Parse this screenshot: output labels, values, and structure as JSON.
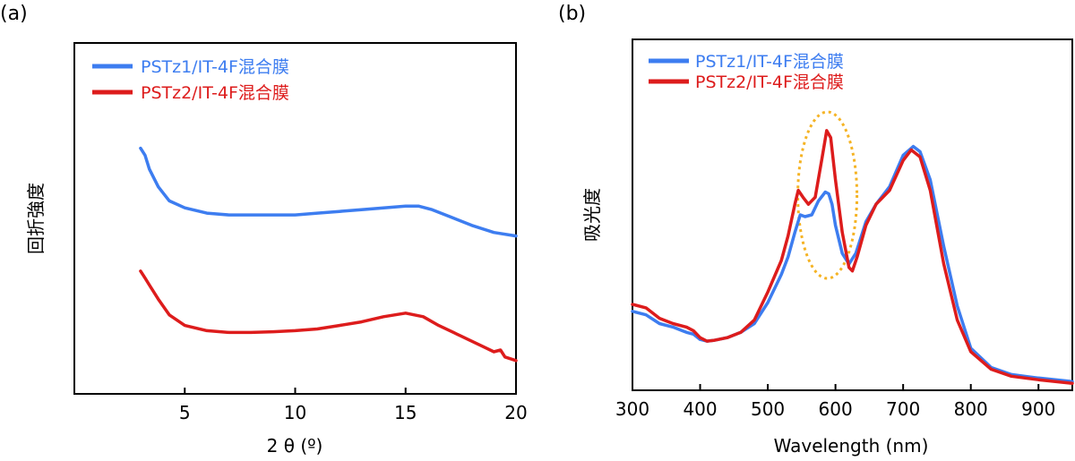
{
  "chart_data": [
    {
      "panel": "(a)",
      "type": "line",
      "xlabel": "2 θ (º)",
      "ylabel": "回折強度",
      "xlim": [
        0,
        20
      ],
      "ylim": [
        0,
        1
      ],
      "xticks": [
        5,
        10,
        15,
        20
      ],
      "xtick_labels": [
        "5",
        "10",
        "15",
        "20"
      ],
      "show_y_ticks": false,
      "legend": "top-left",
      "series": [
        {
          "name": "PSTz1/IT-4F混合膜",
          "color": "#3d7df0",
          "x": [
            3.0,
            3.2,
            3.4,
            3.8,
            4.3,
            5.0,
            6.0,
            7.0,
            8.0,
            9.0,
            10.0,
            11.0,
            12.0,
            13.0,
            14.0,
            15.0,
            15.6,
            16.2,
            17.0,
            18.0,
            19.0,
            20.0
          ],
          "y": [
            0.7,
            0.68,
            0.64,
            0.59,
            0.55,
            0.53,
            0.515,
            0.51,
            0.51,
            0.51,
            0.51,
            0.515,
            0.52,
            0.525,
            0.53,
            0.535,
            0.535,
            0.525,
            0.505,
            0.48,
            0.46,
            0.45
          ]
        },
        {
          "name": "PSTz2/IT-4F混合膜",
          "color": "#dd1c1c",
          "x": [
            3.0,
            3.2,
            3.4,
            3.8,
            4.3,
            5.0,
            6.0,
            7.0,
            8.0,
            9.0,
            10.0,
            11.0,
            12.0,
            13.0,
            14.0,
            15.0,
            15.8,
            16.5,
            17.5,
            18.5,
            19.0,
            19.3,
            19.5,
            20.0
          ],
          "y": [
            0.35,
            0.33,
            0.31,
            0.27,
            0.225,
            0.195,
            0.18,
            0.175,
            0.175,
            0.177,
            0.18,
            0.185,
            0.195,
            0.205,
            0.22,
            0.23,
            0.22,
            0.195,
            0.165,
            0.135,
            0.12,
            0.125,
            0.105,
            0.095
          ]
        }
      ]
    },
    {
      "panel": "(b)",
      "type": "line",
      "xlabel": "Wavelength (nm)",
      "ylabel": "吸光度",
      "xlim": [
        300,
        950
      ],
      "ylim": [
        0,
        1
      ],
      "xticks": [
        300,
        400,
        500,
        600,
        700,
        800,
        900
      ],
      "xtick_labels": [
        "300",
        "400",
        "500",
        "600",
        "700",
        "800",
        "900"
      ],
      "show_y_ticks": false,
      "legend": "top-left",
      "annotation": {
        "type": "dashed-ellipse",
        "color": "#f5b324",
        "center_x_nm": 588
      },
      "series": [
        {
          "name": "PSTz1/IT-4F混合膜",
          "color": "#3d7df0",
          "x": [
            300,
            320,
            340,
            360,
            380,
            390,
            400,
            410,
            420,
            440,
            460,
            480,
            500,
            520,
            530,
            540,
            548,
            555,
            565,
            575,
            585,
            590,
            595,
            600,
            610,
            620,
            630,
            645,
            660,
            680,
            700,
            715,
            725,
            740,
            760,
            780,
            800,
            830,
            860,
            900,
            950
          ],
          "y": [
            0.225,
            0.215,
            0.19,
            0.18,
            0.165,
            0.16,
            0.145,
            0.14,
            0.142,
            0.15,
            0.165,
            0.19,
            0.25,
            0.33,
            0.38,
            0.45,
            0.5,
            0.495,
            0.5,
            0.54,
            0.565,
            0.56,
            0.53,
            0.47,
            0.39,
            0.36,
            0.39,
            0.48,
            0.53,
            0.58,
            0.67,
            0.695,
            0.68,
            0.6,
            0.41,
            0.24,
            0.12,
            0.065,
            0.045,
            0.035,
            0.025
          ]
        },
        {
          "name": "PSTz2/IT-4F混合膜",
          "color": "#dd1c1c",
          "x": [
            300,
            320,
            340,
            360,
            380,
            390,
            400,
            410,
            420,
            440,
            460,
            480,
            500,
            520,
            530,
            540,
            545,
            552,
            560,
            570,
            580,
            587,
            593,
            600,
            610,
            620,
            625,
            632,
            645,
            660,
            680,
            700,
            712,
            725,
            740,
            760,
            780,
            800,
            830,
            860,
            900,
            950
          ],
          "y": [
            0.245,
            0.235,
            0.205,
            0.19,
            0.18,
            0.17,
            0.15,
            0.14,
            0.142,
            0.15,
            0.165,
            0.2,
            0.28,
            0.37,
            0.44,
            0.53,
            0.57,
            0.55,
            0.53,
            0.55,
            0.66,
            0.74,
            0.72,
            0.6,
            0.45,
            0.35,
            0.34,
            0.38,
            0.47,
            0.53,
            0.57,
            0.655,
            0.685,
            0.665,
            0.57,
            0.36,
            0.2,
            0.11,
            0.06,
            0.04,
            0.03,
            0.02
          ]
        }
      ]
    }
  ]
}
